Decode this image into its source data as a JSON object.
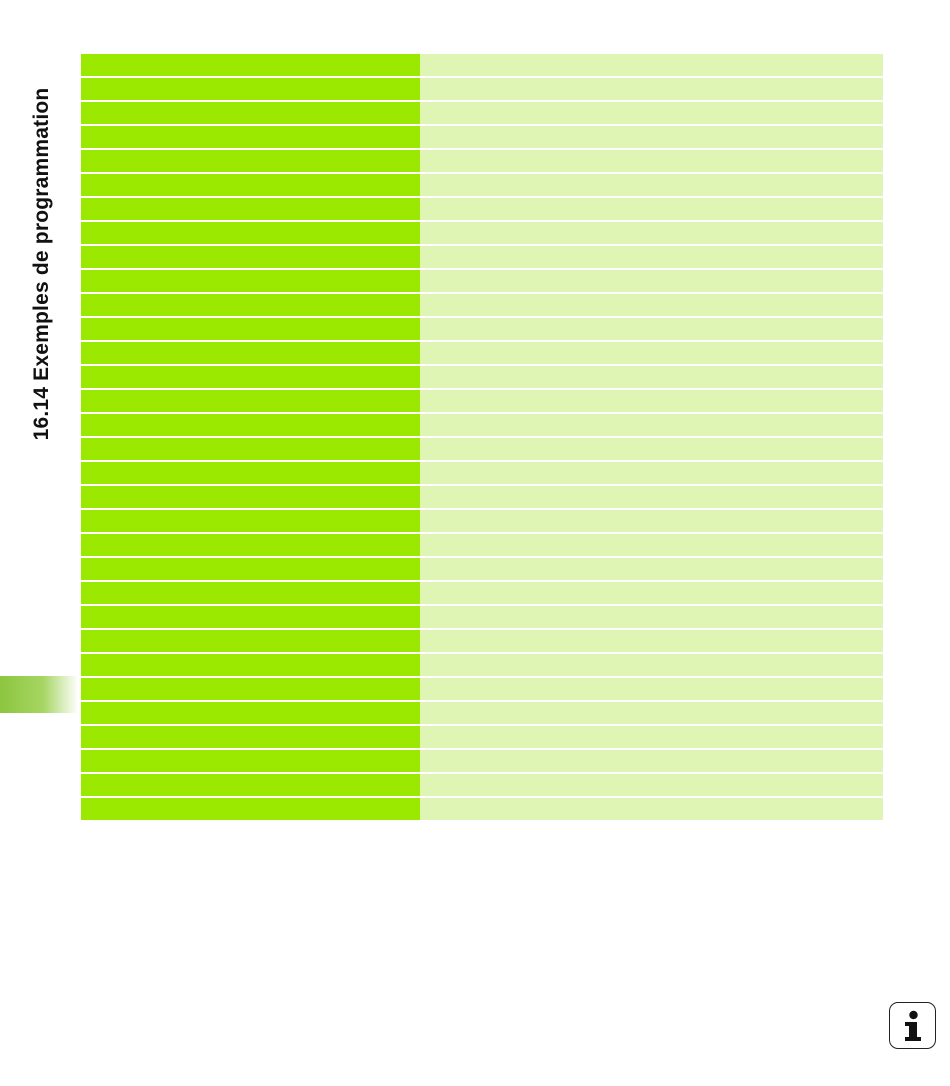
{
  "page": {
    "section_title": "16.14 Exemples de programmation"
  },
  "table": {
    "row_count": 32,
    "colors": {
      "left_column": "#9be800",
      "right_column": "#dff5b4"
    }
  },
  "icons": {
    "info": "info-icon"
  }
}
